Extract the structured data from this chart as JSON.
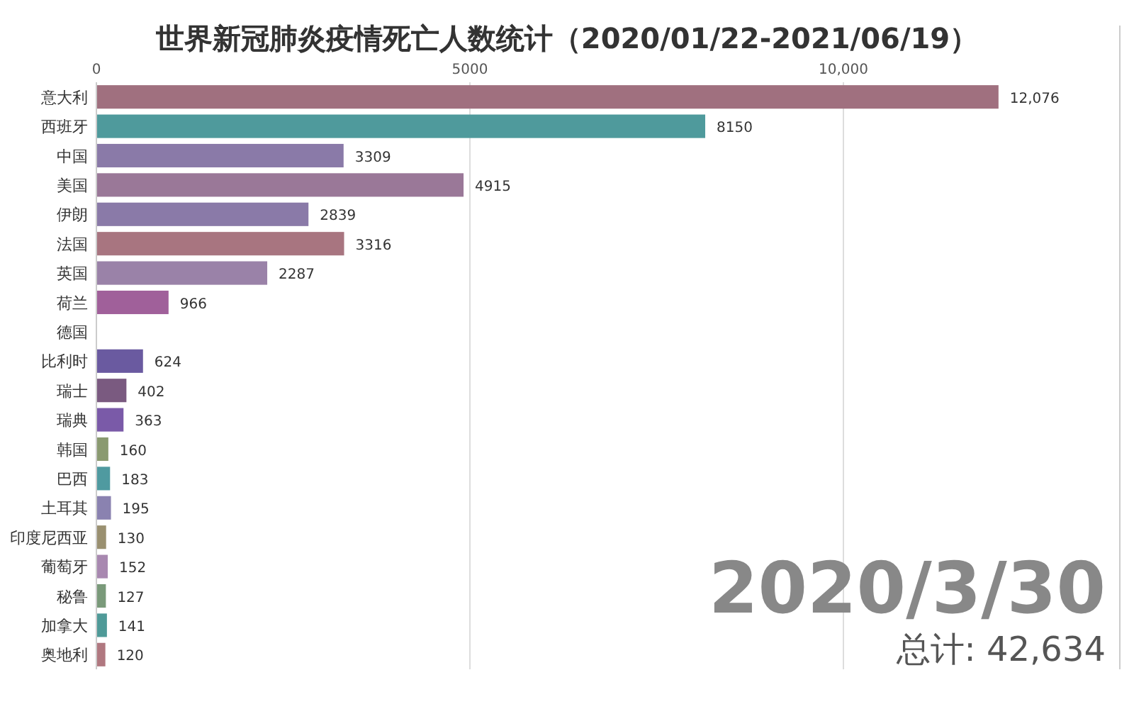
{
  "chart_data": {
    "type": "bar",
    "orientation": "horizontal",
    "title": "世界新冠肺炎疫情死亡人数统计（2020/01/22-2021/06/19）",
    "categories": [
      "意大利",
      "西班牙",
      "中国",
      "美国",
      "伊朗",
      "法国",
      "英国",
      "荷兰",
      "德国",
      "比利时",
      "瑞士",
      "瑞典",
      "韩国",
      "巴西",
      "土耳其",
      "印度尼西亚",
      "葡萄牙",
      "秘鲁",
      "加拿大",
      "奥地利"
    ],
    "values": [
      12076,
      8150,
      3309,
      4915,
      2839,
      3316,
      2287,
      966,
      null,
      624,
      402,
      363,
      160,
      183,
      195,
      130,
      152,
      127,
      141,
      120
    ],
    "value_labels": [
      "12,076",
      "8150",
      "3309",
      "4915",
      "2839",
      "3316",
      "2287",
      "966",
      null,
      "624",
      "402",
      "363",
      "160",
      "183",
      "195",
      "130",
      "152",
      "127",
      "141",
      "120"
    ],
    "colors": [
      "#a0707f",
      "#4f9a9c",
      "#8a7aa8",
      "#9a7898",
      "#8a7aa8",
      "#a87580",
      "#9a82a8",
      "#a0609a",
      null,
      "#6a5aa0",
      "#7a5a80",
      "#7a5aa8",
      "#8a9a70",
      "#4f9aa0",
      "#8a82b0",
      "#9a9070",
      "#a888b0",
      "#7a9a7a",
      "#4f9a98",
      "#b07880"
    ],
    "xlim": [
      0,
      13700
    ],
    "xticks": [
      0,
      5000,
      {
        "value": 10000,
        "label": "10,000"
      }
    ],
    "grid": "x",
    "annotations": [
      "2020/3/30",
      "总计: 42,634"
    ]
  }
}
